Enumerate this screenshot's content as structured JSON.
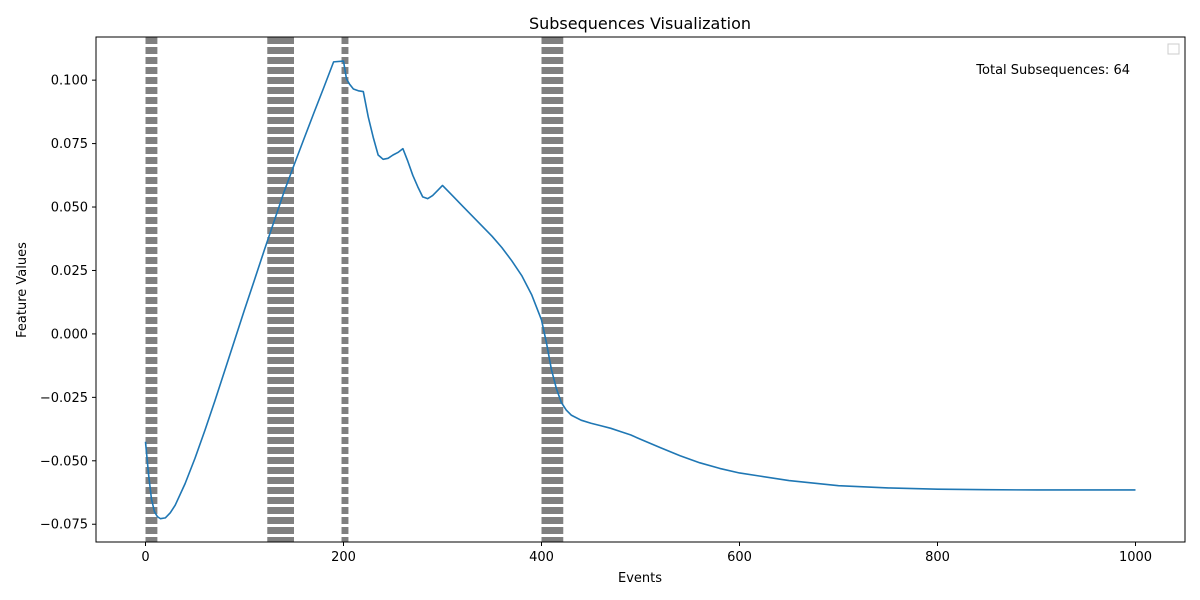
{
  "chart_data": {
    "type": "line",
    "title": "Subsequences Visualization",
    "xlabel": "Events",
    "ylabel": "Feature Values",
    "xlim": [
      -50,
      1050
    ],
    "ylim": [
      -0.082,
      0.117
    ],
    "x_ticks": [
      0,
      200,
      400,
      600,
      800,
      1000
    ],
    "x_tick_labels": [
      "0",
      "200",
      "400",
      "600",
      "800",
      "1000"
    ],
    "y_ticks": [
      -0.075,
      -0.05,
      -0.025,
      0.0,
      0.025,
      0.05,
      0.075,
      0.1
    ],
    "y_tick_labels": [
      "−0.075",
      "−0.050",
      "−0.025",
      "0.000",
      "0.025",
      "0.050",
      "0.075",
      "0.100"
    ],
    "grid": false,
    "legend": {
      "placement": "top-right",
      "entries": []
    },
    "annotation": "Total Subsequences: 64",
    "series": [
      {
        "color": "#1f77b4",
        "x": [
          0,
          3,
          6,
          9,
          12,
          15,
          20,
          25,
          30,
          40,
          50,
          60,
          70,
          80,
          90,
          100,
          110,
          120,
          130,
          140,
          150,
          160,
          170,
          180,
          190,
          200,
          203,
          206,
          210,
          215,
          220,
          225,
          230,
          235,
          240,
          245,
          250,
          255,
          260,
          265,
          270,
          275,
          280,
          285,
          290,
          295,
          300,
          310,
          320,
          330,
          340,
          350,
          360,
          370,
          380,
          390,
          400,
          405,
          410,
          415,
          420,
          425,
          430,
          440,
          450,
          460,
          470,
          480,
          490,
          500,
          520,
          540,
          560,
          580,
          600,
          620,
          650,
          700,
          750,
          800,
          850,
          900,
          950,
          1000
        ],
        "y": [
          -0.0425,
          -0.055,
          -0.065,
          -0.07,
          -0.072,
          -0.0728,
          -0.0725,
          -0.0705,
          -0.0675,
          -0.059,
          -0.049,
          -0.038,
          -0.0265,
          -0.0145,
          -0.0025,
          0.0095,
          0.0212,
          0.033,
          0.0445,
          0.056,
          0.0665,
          0.0768,
          0.087,
          0.097,
          0.1072,
          0.1075,
          0.1005,
          0.0985,
          0.0965,
          0.0958,
          0.0955,
          0.0855,
          0.0775,
          0.0705,
          0.0688,
          0.0692,
          0.0705,
          0.0715,
          0.073,
          0.068,
          0.0625,
          0.058,
          0.054,
          0.0533,
          0.0545,
          0.0565,
          0.0585,
          0.0545,
          0.0505,
          0.0465,
          0.0425,
          0.0385,
          0.034,
          0.0288,
          0.023,
          0.0155,
          0.0055,
          -0.0035,
          -0.014,
          -0.0215,
          -0.027,
          -0.03,
          -0.032,
          -0.034,
          -0.0352,
          -0.0362,
          -0.0372,
          -0.0385,
          -0.0398,
          -0.0415,
          -0.0448,
          -0.048,
          -0.0508,
          -0.053,
          -0.0548,
          -0.056,
          -0.0578,
          -0.0598,
          -0.0607,
          -0.0612,
          -0.0614,
          -0.0615,
          -0.0615,
          -0.0615
        ]
      }
    ],
    "shaded_regions": {
      "color": "#808080",
      "ranges": [
        [
          0,
          12
        ],
        [
          123,
          150
        ],
        [
          198,
          205
        ],
        [
          400,
          422
        ]
      ]
    }
  }
}
